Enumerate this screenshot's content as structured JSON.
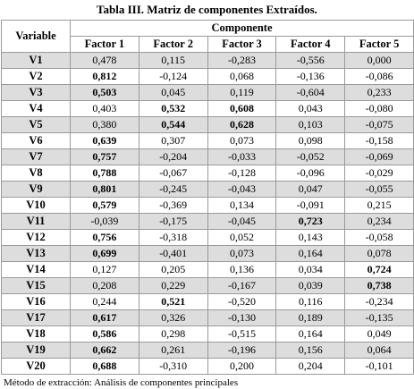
{
  "title": "Tabla III. Matriz de componentes Extraídos.",
  "header": {
    "variable_label": "Variable",
    "group_label": "Componente",
    "factors": [
      "Factor 1",
      "Factor 2",
      "Factor 3",
      "Factor 4",
      "Factor 5"
    ]
  },
  "rows": [
    {
      "variable": "V1",
      "values": [
        "0,478",
        "0,115",
        "-0,283",
        "-0,556",
        "0,000"
      ],
      "bold": []
    },
    {
      "variable": "V2",
      "values": [
        "0,812",
        "-0,124",
        "0,068",
        "-0,136",
        "-0,086"
      ],
      "bold": [
        0
      ]
    },
    {
      "variable": "V3",
      "values": [
        "0,503",
        "0,045",
        "0,119",
        "-0,604",
        "0,233"
      ],
      "bold": [
        0
      ]
    },
    {
      "variable": "V4",
      "values": [
        "0,403",
        "0,532",
        "0,608",
        "0,043",
        "-0,080"
      ],
      "bold": [
        1,
        2
      ]
    },
    {
      "variable": "V5",
      "values": [
        "0,380",
        "0,544",
        "0,628",
        "0,103",
        "-0,075"
      ],
      "bold": [
        1,
        2
      ]
    },
    {
      "variable": "V6",
      "values": [
        "0,639",
        "0,307",
        "0,073",
        "0,098",
        "-0,158"
      ],
      "bold": [
        0
      ]
    },
    {
      "variable": "V7",
      "values": [
        "0,757",
        "-0,204",
        "-0,033",
        "-0,052",
        "-0,069"
      ],
      "bold": [
        0
      ]
    },
    {
      "variable": "V8",
      "values": [
        "0,788",
        "-0,067",
        "-0,128",
        "-0,096",
        "-0,029"
      ],
      "bold": [
        0
      ]
    },
    {
      "variable": "V9",
      "values": [
        "0,801",
        "-0,245",
        "-0,043",
        "0,047",
        "-0,055"
      ],
      "bold": [
        0
      ]
    },
    {
      "variable": "V10",
      "values": [
        "0,579",
        "-0,369",
        "0,134",
        "-0,091",
        "0,215"
      ],
      "bold": [
        0
      ]
    },
    {
      "variable": "V11",
      "values": [
        "-0,039",
        "-0,175",
        "-0,045",
        "0,723",
        "0,234"
      ],
      "bold": [
        3
      ]
    },
    {
      "variable": "V12",
      "values": [
        "0,756",
        "-0,318",
        "0,052",
        "0,143",
        "-0,058"
      ],
      "bold": [
        0
      ]
    },
    {
      "variable": "V13",
      "values": [
        "0,699",
        "-0,401",
        "0,073",
        "0,164",
        "0,078"
      ],
      "bold": [
        0
      ]
    },
    {
      "variable": "V14",
      "values": [
        "0,127",
        "0,205",
        "0,136",
        "0,034",
        "0,724"
      ],
      "bold": [
        4
      ]
    },
    {
      "variable": "V15",
      "values": [
        "0,208",
        "0,229",
        "-0,167",
        "0,039",
        "0,738"
      ],
      "bold": [
        4
      ]
    },
    {
      "variable": "V16",
      "values": [
        "0,244",
        "0,521",
        "-0,520",
        "0,116",
        "-0,234"
      ],
      "bold": [
        1
      ]
    },
    {
      "variable": "V17",
      "values": [
        "0,617",
        "0,326",
        "-0,130",
        "0,189",
        "-0,135"
      ],
      "bold": [
        0
      ]
    },
    {
      "variable": "V18",
      "values": [
        "0,586",
        "0,298",
        "-0,515",
        "0,164",
        "0,049"
      ],
      "bold": [
        0
      ]
    },
    {
      "variable": "V19",
      "values": [
        "0,662",
        "0,261",
        "-0,196",
        "0,156",
        "0,064"
      ],
      "bold": [
        0
      ]
    },
    {
      "variable": "V20",
      "values": [
        "0,688",
        "-0,310",
        "0,200",
        "0,204",
        "-0,101"
      ],
      "bold": [
        0
      ]
    }
  ],
  "footnote": "Método de extracción: Análisis de componentes principales",
  "colors": {
    "stripe": "#dddddd",
    "background": "#ffffff",
    "border": "#9a9a9a"
  }
}
